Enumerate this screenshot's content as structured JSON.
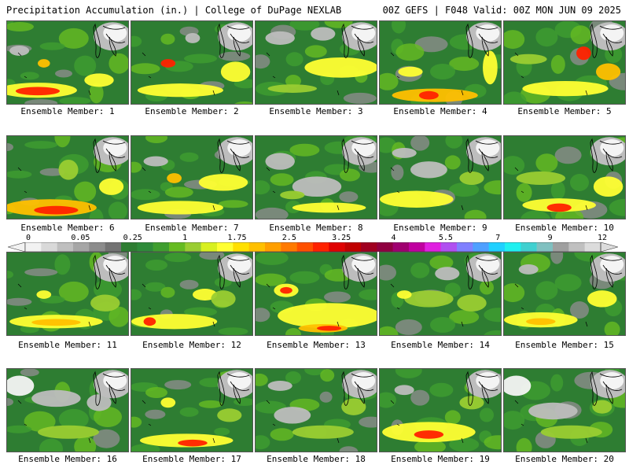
{
  "header": {
    "left": "Precipitation Accumulation (in.) | College of DuPage NEXLAB",
    "right": "00Z GEFS | F048 Valid: 00Z MON JUN 09 2025"
  },
  "colorbar": {
    "labels": [
      "0",
      "0.05",
      "0.25",
      "1",
      "1.75",
      "2.5",
      "3.25",
      "4",
      "5.5",
      "7",
      "9",
      "12"
    ],
    "colors": [
      "#f2f2f2",
      "#d9d9d9",
      "#bfbfbf",
      "#a6a6a6",
      "#8c8c8c",
      "#737373",
      "#2e7d32",
      "#2e8b3a",
      "#3f9e2f",
      "#66bb22",
      "#9acd32",
      "#d8f020",
      "#ffff33",
      "#ffe000",
      "#ffc000",
      "#ff9f00",
      "#ff7a00",
      "#ff5000",
      "#ff2200",
      "#e00000",
      "#c00000",
      "#a00020",
      "#900040",
      "#a00070",
      "#c000a0",
      "#e020e0",
      "#b050f0",
      "#8080ff",
      "#4fa0ff",
      "#20d0ff",
      "#20f0f0",
      "#40d0d0",
      "#80c0c0",
      "#a0a0a0",
      "#c0c0c0",
      "#dcdcdc"
    ]
  },
  "members": [
    {
      "label": "Ensemble Member: 1"
    },
    {
      "label": "Ensemble Member: 2"
    },
    {
      "label": "Ensemble Member: 3"
    },
    {
      "label": "Ensemble Member: 4"
    },
    {
      "label": "Ensemble Member: 5"
    },
    {
      "label": "Ensemble Member: 6"
    },
    {
      "label": "Ensemble Member: 7"
    },
    {
      "label": "Ensemble Member: 8"
    },
    {
      "label": "Ensemble Member: 9"
    },
    {
      "label": "Ensemble Member: 10"
    },
    {
      "label": "Ensemble Member: 11"
    },
    {
      "label": "Ensemble Member: 12"
    },
    {
      "label": "Ensemble Member: 13"
    },
    {
      "label": "Ensemble Member: 14"
    },
    {
      "label": "Ensemble Member: 15"
    },
    {
      "label": "Ensemble Member: 16"
    },
    {
      "label": "Ensemble Member: 17"
    },
    {
      "label": "Ensemble Member: 18"
    },
    {
      "label": "Ensemble Member: 19"
    },
    {
      "label": "Ensemble Member: 20"
    }
  ]
}
